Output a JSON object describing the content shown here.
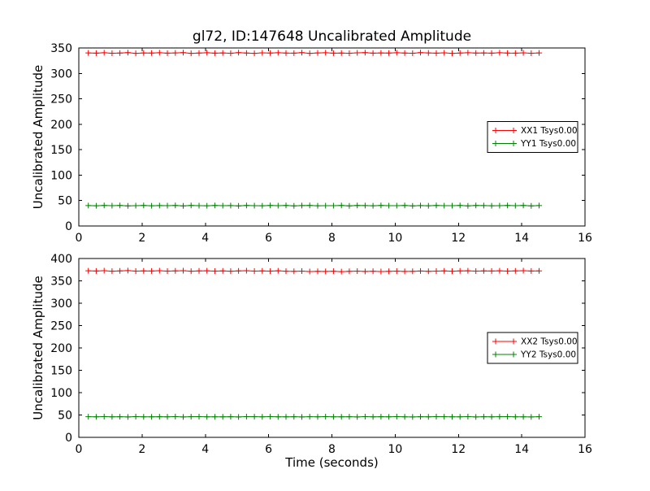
{
  "figure": {
    "title": "gl72, ID:147648 Uncalibrated Amplitude",
    "background_color": "#ffffff",
    "frame_color": "#000000",
    "red_series_color": "#ff0000",
    "green_series_color": "#008000"
  },
  "chart_data": [
    {
      "type": "line",
      "title": "gl72, ID:147648 Uncalibrated Amplitude",
      "xlabel": "",
      "ylabel": "Uncalibrated Amplitude",
      "xlim": [
        0,
        16
      ],
      "ylim": [
        0,
        350
      ],
      "xticks": [
        0,
        2,
        4,
        6,
        8,
        10,
        12,
        14,
        16
      ],
      "yticks": [
        0,
        50,
        100,
        150,
        200,
        250,
        300,
        350
      ],
      "grid": false,
      "legend_position": "center right",
      "marker": "+",
      "x": [
        0.3,
        0.55,
        0.8,
        1.05,
        1.3,
        1.55,
        1.8,
        2.05,
        2.3,
        2.55,
        2.8,
        3.05,
        3.3,
        3.55,
        3.8,
        4.05,
        4.3,
        4.55,
        4.8,
        5.05,
        5.3,
        5.55,
        5.8,
        6.05,
        6.3,
        6.55,
        6.8,
        7.05,
        7.3,
        7.55,
        7.8,
        8.05,
        8.3,
        8.55,
        8.8,
        9.05,
        9.3,
        9.55,
        9.8,
        10.05,
        10.3,
        10.55,
        10.8,
        11.05,
        11.3,
        11.55,
        11.8,
        12.05,
        12.3,
        12.55,
        12.8,
        13.05,
        13.3,
        13.55,
        13.8,
        14.05,
        14.3,
        14.55
      ],
      "series": [
        {
          "name": "XX1 Tsys0.00",
          "color": "#ff0000",
          "values": [
            340.2,
            339.8,
            340.5,
            339.6,
            340.1,
            340.8,
            339.5,
            340.3,
            339.9,
            340.6,
            339.7,
            340.2,
            340.9,
            339.4,
            340.0,
            340.5,
            339.8,
            340.3,
            339.6,
            340.7,
            340.1,
            339.5,
            340.4,
            339.9,
            340.6,
            340.0,
            339.7,
            340.8,
            339.5,
            340.2,
            340.6,
            339.8,
            340.1,
            339.6,
            340.4,
            340.9,
            339.7,
            340.3,
            339.9,
            340.5,
            340.0,
            339.6,
            340.7,
            340.2,
            339.8,
            340.4,
            339.5,
            340.1,
            340.6,
            339.9,
            340.3,
            339.7,
            340.5,
            340.0,
            339.8,
            340.4,
            339.6,
            340.2
          ]
        },
        {
          "name": "YY1 Tsys0.00",
          "color": "#008000",
          "values": [
            40.1,
            39.8,
            40.3,
            39.9,
            40.2,
            39.7,
            40.0,
            40.4,
            39.8,
            40.1,
            39.9,
            40.3,
            39.7,
            40.2,
            40.0,
            39.8,
            40.4,
            39.9,
            40.1,
            39.7,
            40.3,
            40.0,
            39.8,
            40.2,
            39.9,
            40.4,
            39.7,
            40.1,
            40.3,
            39.8,
            40.0,
            39.9,
            40.2,
            39.7,
            40.4,
            40.1,
            39.8,
            40.3,
            39.9,
            40.0,
            40.2,
            39.7,
            40.1,
            39.8,
            40.4,
            40.0,
            39.9,
            40.3,
            39.7,
            40.2,
            40.1,
            39.8,
            40.0,
            40.4,
            39.9,
            40.2,
            39.7,
            40.1
          ]
        }
      ]
    },
    {
      "type": "line",
      "title": "",
      "xlabel": "Time (seconds)",
      "ylabel": "Uncalibrated Amplitude",
      "xlim": [
        0,
        16
      ],
      "ylim": [
        0,
        400
      ],
      "xticks": [
        0,
        2,
        4,
        6,
        8,
        10,
        12,
        14,
        16
      ],
      "yticks": [
        0,
        50,
        100,
        150,
        200,
        250,
        300,
        350,
        400
      ],
      "grid": false,
      "legend_position": "center right",
      "marker": "+",
      "x": [
        0.3,
        0.55,
        0.8,
        1.05,
        1.3,
        1.55,
        1.8,
        2.05,
        2.3,
        2.55,
        2.8,
        3.05,
        3.3,
        3.55,
        3.8,
        4.05,
        4.3,
        4.55,
        4.8,
        5.05,
        5.3,
        5.55,
        5.8,
        6.05,
        6.3,
        6.55,
        6.8,
        7.05,
        7.3,
        7.55,
        7.8,
        8.05,
        8.3,
        8.55,
        8.8,
        9.05,
        9.3,
        9.55,
        9.8,
        10.05,
        10.3,
        10.55,
        10.8,
        11.05,
        11.3,
        11.55,
        11.8,
        12.05,
        12.3,
        12.55,
        12.8,
        13.05,
        13.3,
        13.55,
        13.8,
        14.05,
        14.3,
        14.55
      ],
      "series": [
        {
          "name": "XX2 Tsys0.00",
          "color": "#ff0000",
          "values": [
            372.5,
            372.0,
            372.8,
            371.6,
            372.3,
            372.9,
            371.8,
            372.4,
            372.0,
            372.7,
            371.9,
            372.2,
            372.8,
            371.7,
            372.1,
            372.6,
            371.9,
            372.4,
            371.6,
            372.2,
            372.7,
            371.8,
            372.3,
            371.9,
            372.5,
            371.6,
            371.2,
            371.8,
            370.9,
            371.5,
            371.1,
            371.7,
            370.8,
            371.4,
            371.9,
            371.0,
            371.6,
            370.9,
            371.3,
            371.8,
            371.1,
            371.5,
            372.0,
            371.4,
            371.9,
            372.3,
            371.7,
            372.1,
            372.6,
            371.9,
            372.4,
            372.0,
            372.5,
            371.8,
            372.2,
            372.7,
            372.0,
            372.4
          ]
        },
        {
          "name": "YY2 Tsys0.00",
          "color": "#008000",
          "values": [
            46.2,
            45.8,
            46.4,
            45.9,
            46.1,
            45.7,
            46.3,
            46.0,
            45.8,
            46.2,
            45.9,
            46.4,
            45.7,
            46.1,
            46.3,
            45.8,
            46.0,
            45.9,
            46.2,
            45.7,
            46.4,
            46.1,
            45.8,
            46.3,
            45.9,
            46.0,
            46.2,
            45.7,
            46.1,
            45.9,
            46.4,
            45.8,
            46.0,
            46.2,
            45.7,
            46.3,
            45.9,
            46.1,
            45.8,
            46.4,
            46.0,
            45.7,
            46.2,
            45.9,
            46.3,
            46.1,
            45.8,
            46.0,
            46.4,
            45.7,
            46.2,
            45.9,
            46.1,
            46.3,
            45.8,
            46.0,
            45.7,
            46.2
          ]
        }
      ]
    }
  ]
}
